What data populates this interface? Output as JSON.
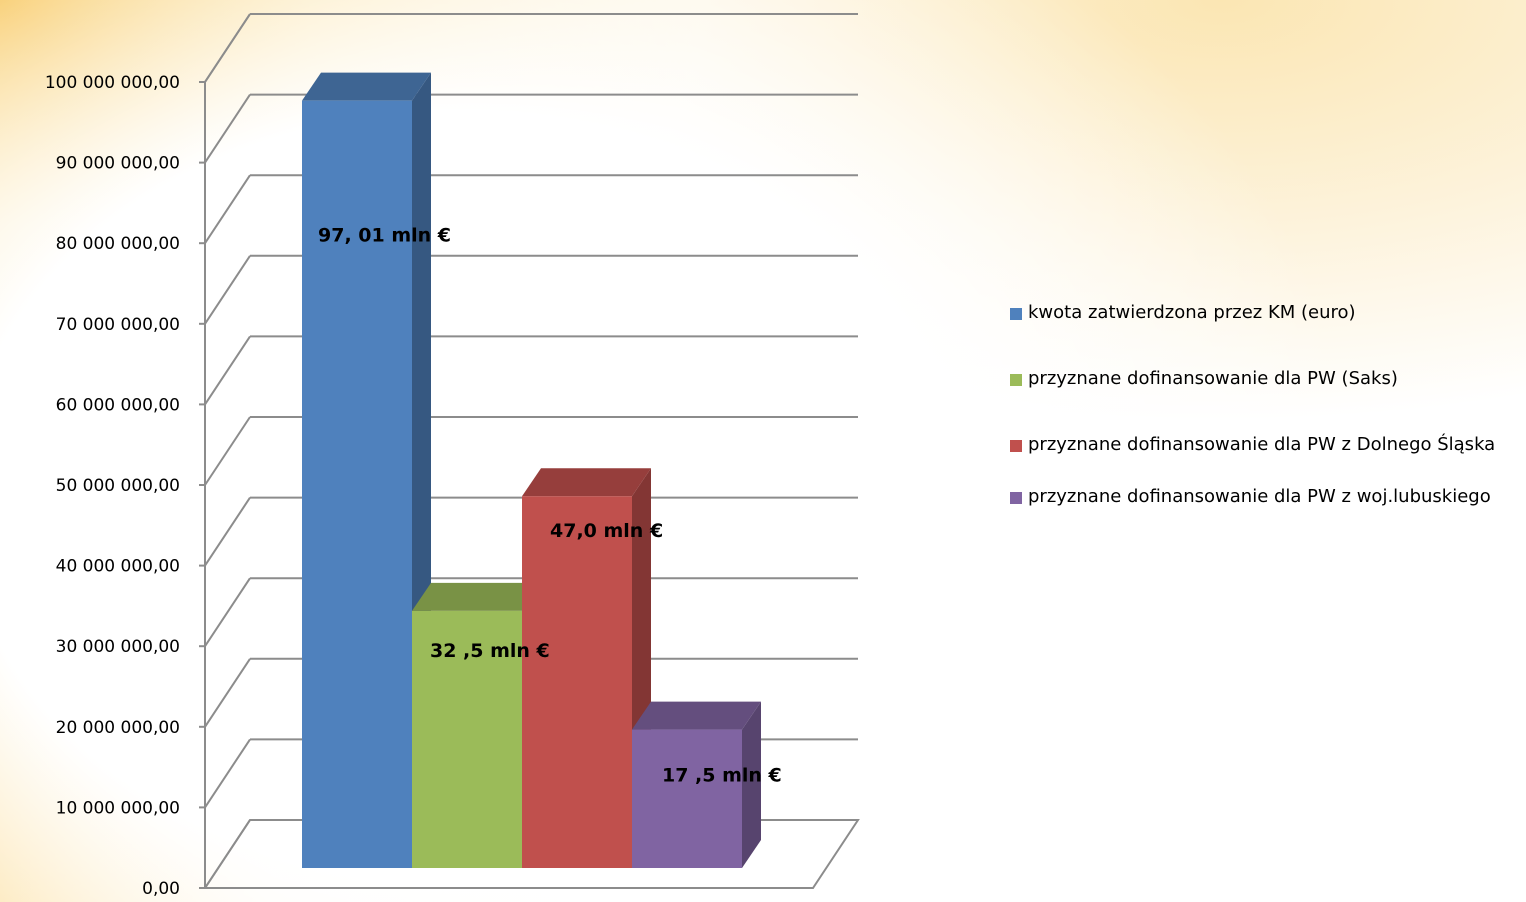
{
  "chart_data": {
    "type": "bar",
    "title": "",
    "xlabel": "",
    "ylabel": "",
    "ylim": [
      0,
      100000000
    ],
    "y_ticks": [
      "0,00",
      "10 000 000,00",
      "20 000 000,00",
      "30 000 000,00",
      "40 000 000,00",
      "50 000 000,00",
      "60 000 000,00",
      "70 000 000,00",
      "80 000 000,00",
      "90 000 000,00",
      "100 000 000,00"
    ],
    "grid": true,
    "legend_position": "right",
    "style": "3d-clustered-column",
    "series": [
      {
        "name": "kwota zatwierdzona przez KM (euro)",
        "values": [
          97010000
        ],
        "label": "97, 01 mln €",
        "color": "#4f81bd"
      },
      {
        "name": "przyznane dofinansowanie dla PW  (Saks)",
        "values": [
          32500000
        ],
        "label": "32 ,5 mln €",
        "color": "#9bbb59"
      },
      {
        "name": "przyznane dofinansowanie dla PW  z Dolnego Śląska",
        "values": [
          47000000
        ],
        "label": "47,0 mln €",
        "color": "#c0504d"
      },
      {
        "name": "przyznane dofinansowanie dla PW  z woj.lubuskiego",
        "values": [
          17500000
        ],
        "label": "17 ,5 mln €",
        "color": "#8064a2"
      }
    ]
  }
}
